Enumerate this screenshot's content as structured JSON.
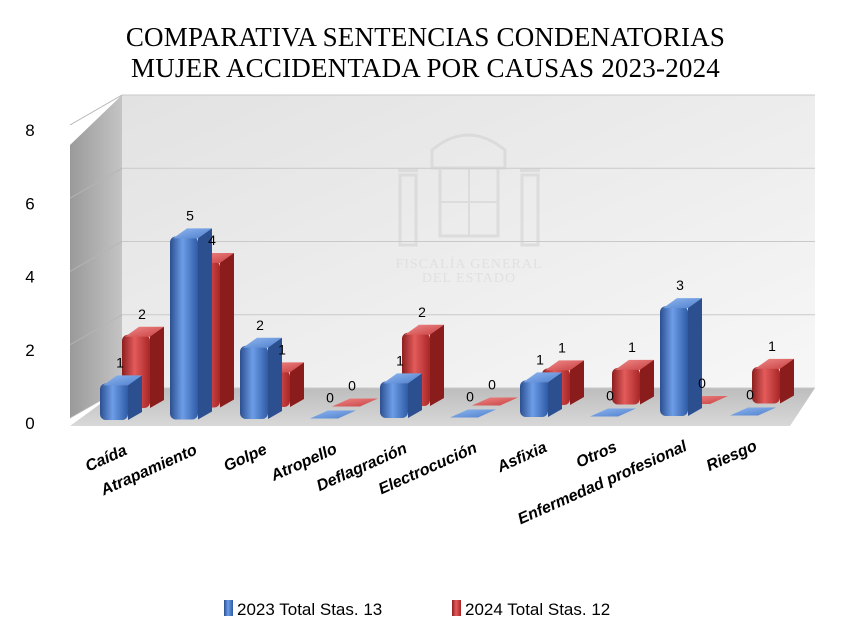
{
  "chart_data": {
    "type": "bar",
    "title": [
      "COMPARATIVA SENTENCIAS CONDENATORIAS",
      "MUJER ACCIDENTADA POR CAUSAS 2023-2024"
    ],
    "categories": [
      "Caída",
      "Atrapamiento",
      "Golpe",
      "Atropello",
      "Deflagración",
      "Electrocución",
      "Asfixia",
      "Otros",
      "Enfermedad profesional",
      "Riesgo"
    ],
    "series": [
      {
        "name": "2023 Total Stas. 13",
        "values": [
          1,
          5,
          2,
          0,
          1,
          0,
          1,
          0,
          3,
          0
        ],
        "color": "#3f6fbf"
      },
      {
        "name": "2024 Total Stas. 12",
        "values": [
          2,
          4,
          1,
          0,
          2,
          0,
          1,
          1,
          0,
          1
        ],
        "color": "#c83232"
      }
    ],
    "ylim": [
      0,
      8
    ],
    "yticks": [
      "0",
      "2",
      "4",
      "6",
      "8"
    ],
    "grid": true,
    "style": "3d-clustered-column",
    "legend_position": "bottom"
  },
  "watermark": {
    "lines": [
      "FISCALÍA GENERAL",
      "DEL ESTADO"
    ]
  }
}
